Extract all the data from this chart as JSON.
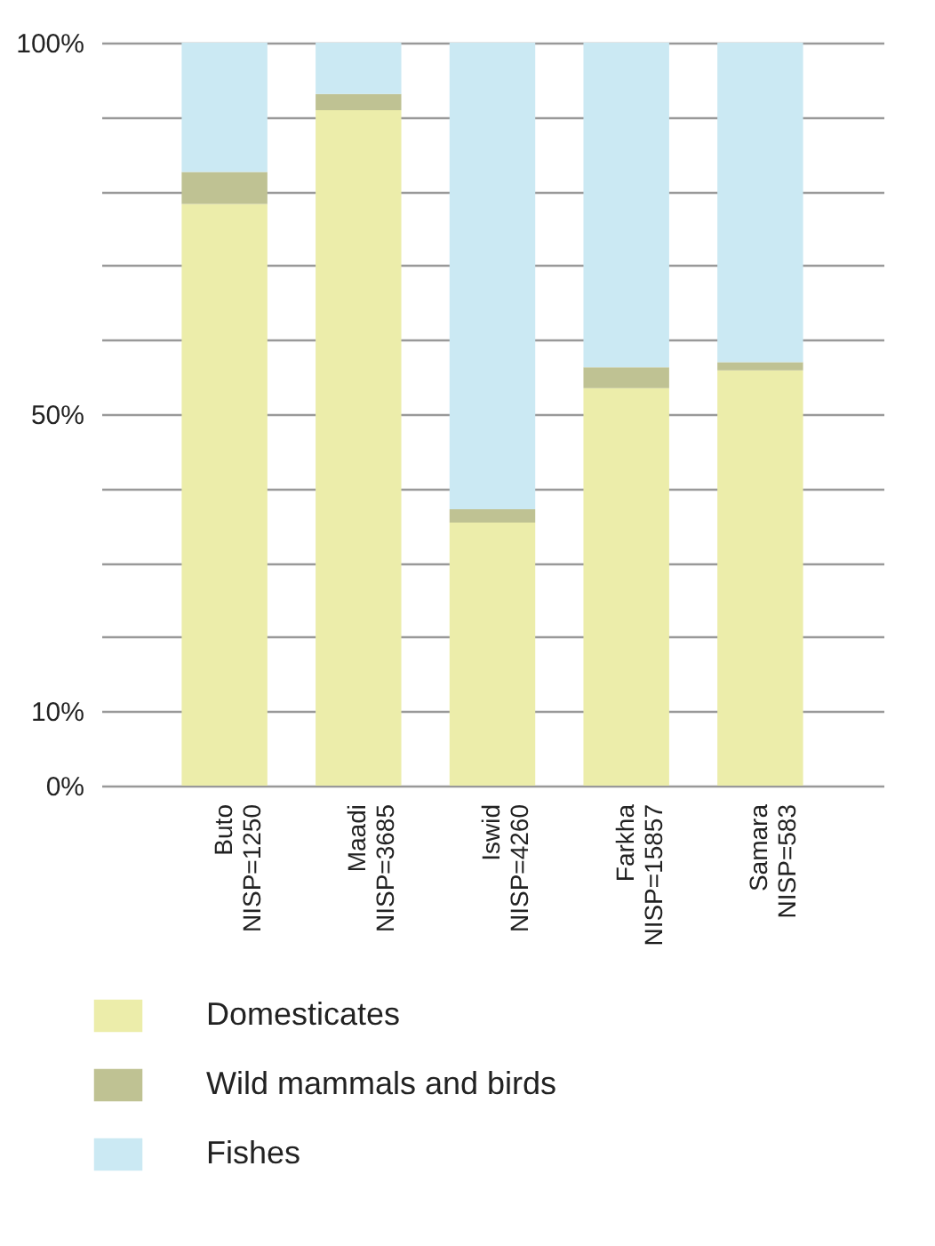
{
  "chart_data": {
    "type": "bar",
    "stacked": true,
    "categories": [
      "Buto\nNISP=1250",
      "Maadi\nNISP=3685",
      "Iswid\nNISP=4260",
      "Farkha\nNISP=15857",
      "Samara\nNISP=583"
    ],
    "series": [
      {
        "name": "Domesticates",
        "color": "#ecedaa",
        "values": [
          78.3,
          90.9,
          35.4,
          53.5,
          55.9
        ]
      },
      {
        "name": "Wild mammals and birds",
        "color": "#bfc293",
        "values": [
          4.3,
          2.2,
          1.8,
          2.8,
          1.1
        ]
      },
      {
        "name": "Fishes",
        "color": "#cbe9f3",
        "values": [
          17.4,
          6.9,
          62.8,
          43.7,
          43.0
        ]
      }
    ],
    "ylim": [
      0,
      100
    ],
    "yticks": [
      {
        "value": 0,
        "label": "0%"
      },
      {
        "value": 10,
        "label": "10%"
      },
      {
        "value": 20,
        "label": null
      },
      {
        "value": 30,
        "label": null
      },
      {
        "value": 40,
        "label": null
      },
      {
        "value": 50,
        "label": "50%"
      },
      {
        "value": 60,
        "label": null
      },
      {
        "value": 70,
        "label": null
      },
      {
        "value": 80,
        "label": null
      },
      {
        "value": 90,
        "label": null
      },
      {
        "value": 100,
        "label": "100%"
      }
    ],
    "grid": "y",
    "legend": "bottom"
  }
}
